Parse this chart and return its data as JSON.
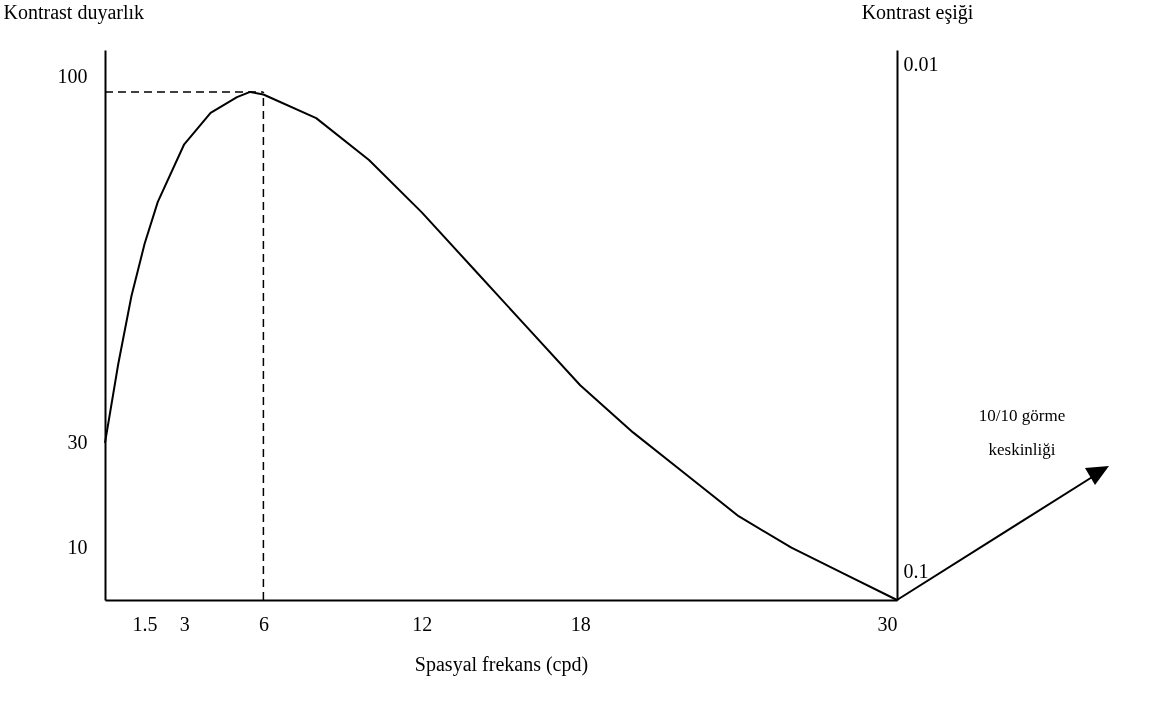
{
  "chart_data": {
    "type": "line",
    "xlabel": "Spasyal frekans (cpd)",
    "ylabel": "Kontrast duyarlık",
    "y2label": "Kontrast eşiği",
    "x": [
      0,
      0.5,
      1,
      1.5,
      2,
      3,
      4,
      5,
      5.5,
      6,
      8,
      10,
      12,
      14,
      16,
      18,
      20,
      22,
      24,
      26,
      28,
      30
    ],
    "series": [
      {
        "color": "#000000",
        "values": [
          30,
          45,
          58,
          68,
          76,
          87,
          93,
          96,
          97,
          96.5,
          92,
          84,
          74,
          63,
          52,
          41,
          32,
          24,
          16,
          10,
          5,
          0
        ]
      }
    ],
    "xlim": [
      0,
      30
    ],
    "xticks": [
      1.5,
      3,
      6,
      12,
      18,
      30
    ],
    "ylim": [
      0,
      105
    ],
    "yticks": [
      10,
      30,
      100
    ],
    "y2lim": [
      0.105,
      0.0075
    ],
    "y2ticks": [
      0.1,
      0.01
    ],
    "ref_lines": [
      {
        "axis": "x",
        "value": 6,
        "line_style": "dashed"
      },
      {
        "axis": "y",
        "value": 97,
        "line_style": "dashed"
      }
    ],
    "annotations": [
      "10/10 görme keskinliği"
    ],
    "grid": false,
    "marker": "none",
    "line_style": "solid"
  }
}
